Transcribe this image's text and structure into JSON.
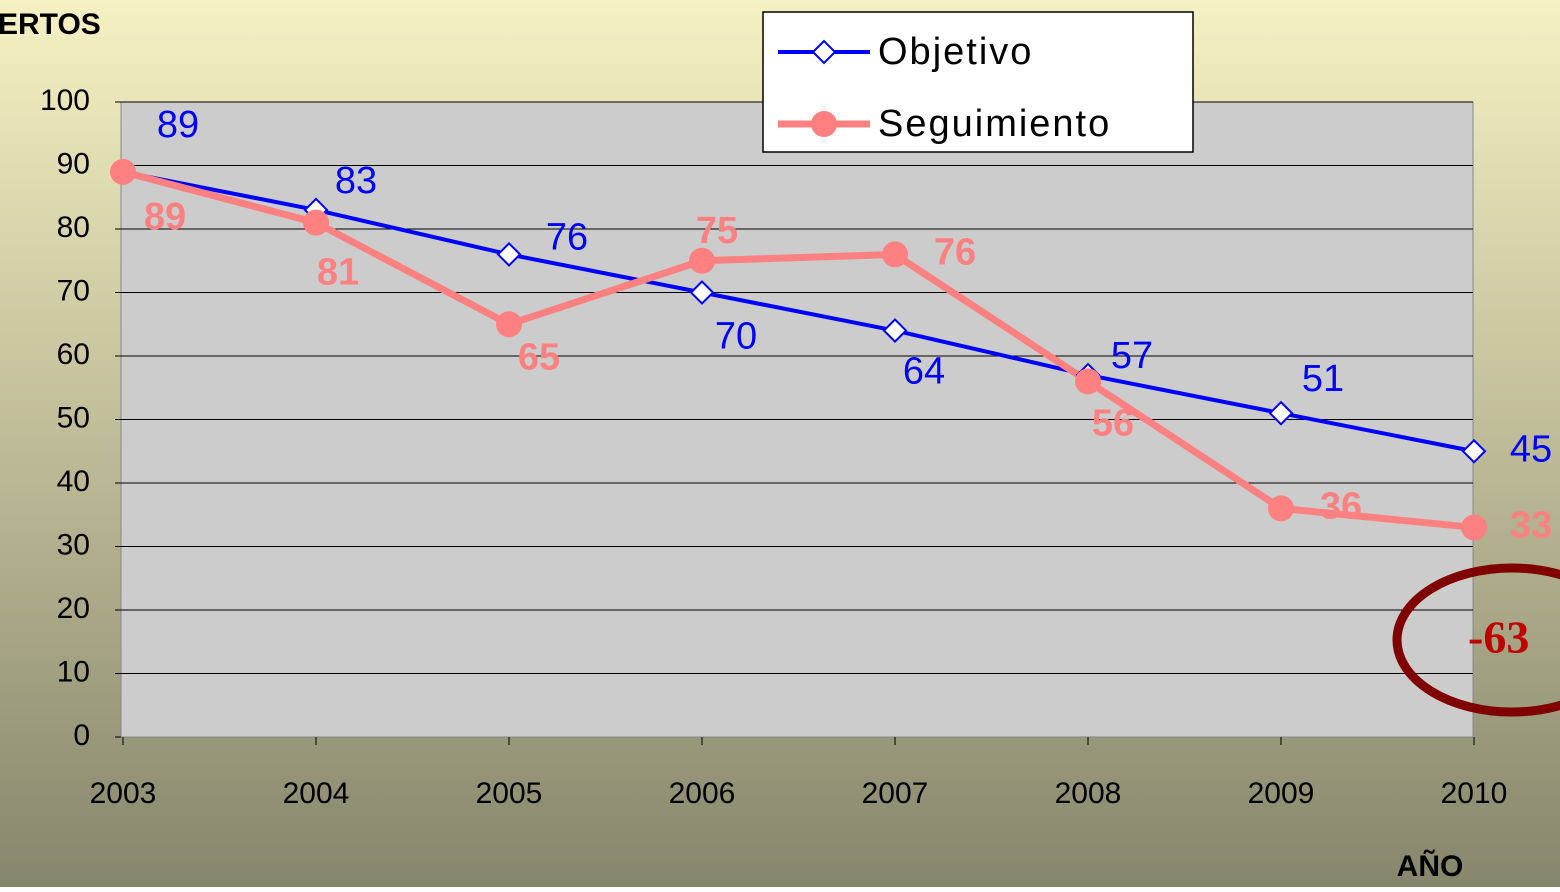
{
  "chart_data": {
    "type": "line",
    "y_axis_label": "ERTOS",
    "x_axis_label": "AÑO",
    "annotation": "-63",
    "categories": [
      "2003",
      "2004",
      "2005",
      "2006",
      "2007",
      "2008",
      "2009",
      "2010"
    ],
    "series": [
      {
        "name": "Objetivo",
        "color": "#0000ff",
        "values": [
          89,
          83,
          76,
          70,
          64,
          57,
          51,
          45
        ]
      },
      {
        "name": "Seguimiento",
        "color": "#ff8080",
        "values": [
          89,
          81,
          65,
          75,
          76,
          56,
          36,
          33
        ]
      }
    ],
    "ylim": [
      0,
      100
    ],
    "yticks": [
      0,
      10,
      20,
      30,
      40,
      50,
      60,
      70,
      80,
      90,
      100
    ],
    "grid": true,
    "legend": "top"
  }
}
